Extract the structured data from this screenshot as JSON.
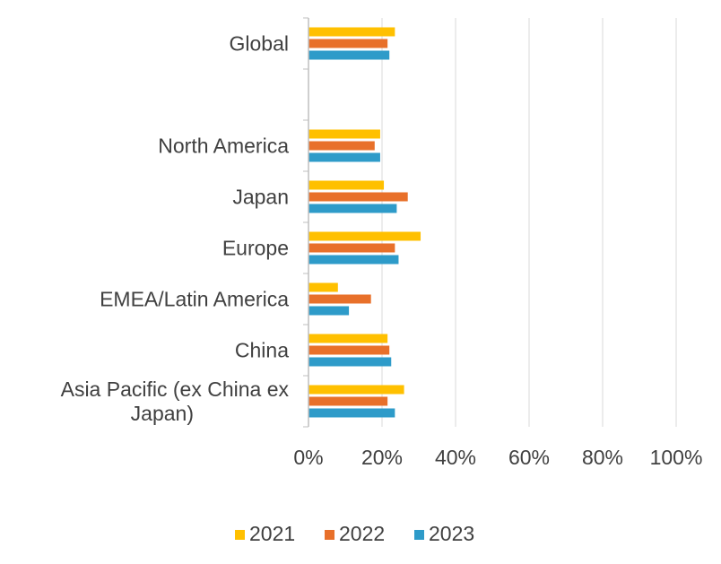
{
  "chart_data": {
    "type": "bar",
    "orientation": "horizontal",
    "title": "",
    "xlabel": "",
    "ylabel": "",
    "xlim": [
      0,
      100
    ],
    "x_ticks": [
      "0%",
      "20%",
      "40%",
      "60%",
      "80%",
      "100%"
    ],
    "grid": "vertical",
    "legend_position": "bottom",
    "categories": [
      "Global",
      "",
      "North America",
      "Japan",
      "Europe",
      "EMEA/Latin America",
      "China",
      "Asia Pacific (ex China ex Japan)"
    ],
    "category_label_lines": [
      [
        "Global"
      ],
      [],
      [
        "North America"
      ],
      [
        "Japan"
      ],
      [
        "Europe"
      ],
      [
        "EMEA/Latin America"
      ],
      [
        "China"
      ],
      [
        "Asia Pacific (ex China ex",
        "Japan)"
      ]
    ],
    "series": [
      {
        "name": "2021",
        "color": "#FFC000",
        "values": [
          23.5,
          null,
          19.5,
          20.5,
          30.5,
          8,
          21.5,
          26
        ]
      },
      {
        "name": "2022",
        "color": "#E8702A",
        "values": [
          21.5,
          null,
          18,
          27,
          23.5,
          17,
          22,
          21.5
        ]
      },
      {
        "name": "2023",
        "color": "#2E9BC9",
        "values": [
          22,
          null,
          19.5,
          24,
          24.5,
          11,
          22.5,
          23.5
        ]
      }
    ]
  }
}
